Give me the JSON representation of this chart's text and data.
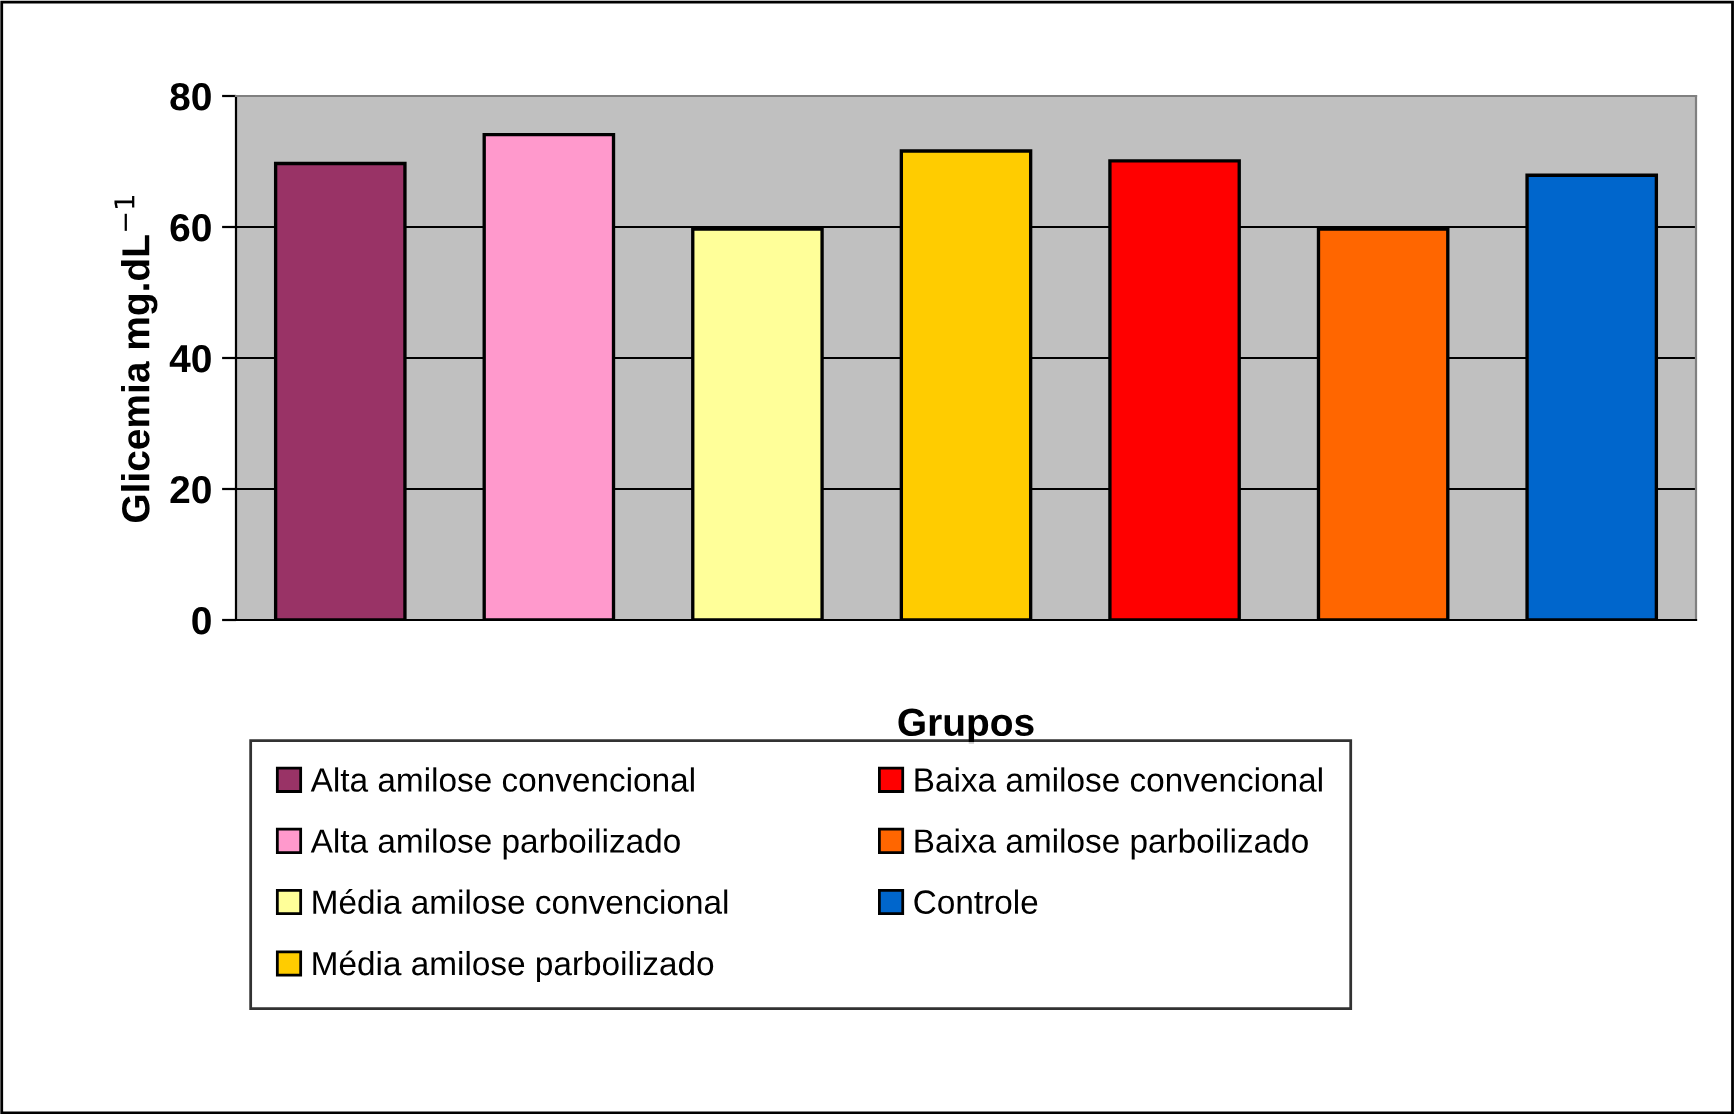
{
  "chart_data": {
    "type": "bar",
    "xlabel": "Grupos",
    "ylabel": "Glicemia mg.dL$^{−1}$",
    "categories": [
      null,
      null,
      null,
      null,
      null,
      null,
      null
    ],
    "series": [
      {
        "name": "Alta amilose convencional",
        "color": "#993366",
        "values": [
          69.7,
          null,
          null,
          null,
          null,
          null,
          null
        ]
      },
      {
        "name": "Alta amilose parboilizado",
        "color": "#ff99cc",
        "values": [
          null,
          74.1,
          null,
          null,
          null,
          null,
          null
        ]
      },
      {
        "name": "Média amilose convencional",
        "color": "#ffff99",
        "values": [
          null,
          null,
          59.7,
          null,
          null,
          null,
          null
        ]
      },
      {
        "name": "Média amilose parboilizado",
        "color": "#ffcc00",
        "values": [
          null,
          null,
          null,
          71.6,
          null,
          null,
          null
        ]
      },
      {
        "name": "Baixa amilose convencional",
        "color": "#ff0000",
        "values": [
          null,
          null,
          null,
          null,
          70.1,
          null,
          null
        ]
      },
      {
        "name": "Baixa amilose parboilizado",
        "color": "#ff6600",
        "values": [
          null,
          null,
          null,
          null,
          null,
          59.7,
          null
        ]
      },
      {
        "name": "Controle",
        "color": "#0066cc",
        "values": [
          null,
          null,
          null,
          null,
          null,
          null,
          67.9
        ]
      }
    ],
    "ylim": [
      0,
      80
    ],
    "yticks": [
      0,
      20,
      40,
      60,
      80
    ],
    "grid": "y",
    "legend": "bottom"
  }
}
